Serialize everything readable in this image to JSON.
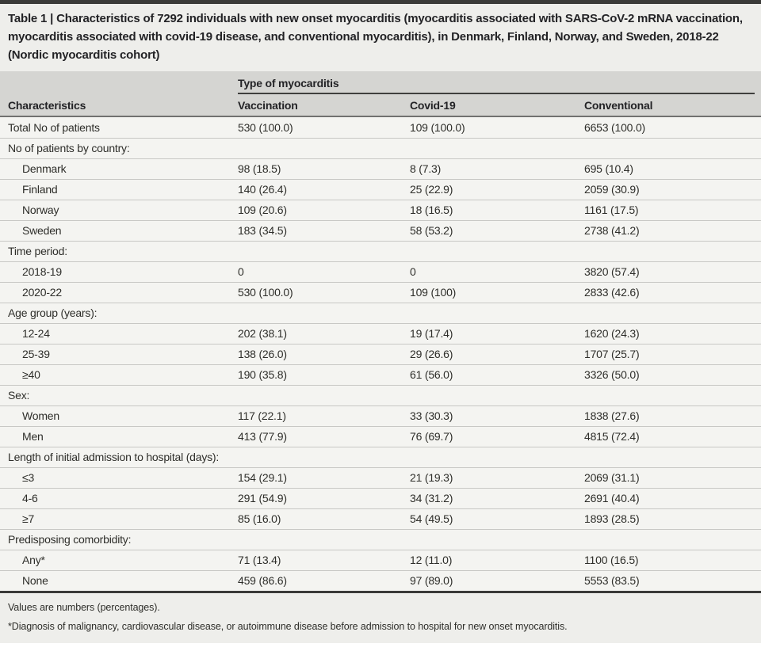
{
  "page": {
    "title": "Table 1 | Characteristics of 7292 individuals with new onset myocarditis (myocarditis associated with SARS-CoV-2 mRNA vaccination, myocarditis associated with covid-19 disease, and conventional myocarditis), in Denmark, Finland, Norway, and Sweden, 2018-22 (Nordic myocarditis cohort)"
  },
  "table": {
    "group_header": "Type of myocarditis",
    "columns": [
      "Characteristics",
      "Vaccination",
      "Covid-19",
      "Conventional"
    ],
    "rows": [
      {
        "type": "data",
        "indent": false,
        "label": "Total No of patients",
        "values": [
          "530 (100.0)",
          "109 (100.0)",
          "6653 (100.0)"
        ]
      },
      {
        "type": "section",
        "label": "No of patients by country:"
      },
      {
        "type": "data",
        "indent": true,
        "label": "Denmark",
        "values": [
          "98 (18.5)",
          "8 (7.3)",
          "695 (10.4)"
        ]
      },
      {
        "type": "data",
        "indent": true,
        "label": "Finland",
        "values": [
          "140 (26.4)",
          "25 (22.9)",
          "2059 (30.9)"
        ]
      },
      {
        "type": "data",
        "indent": true,
        "label": "Norway",
        "values": [
          "109 (20.6)",
          "18 (16.5)",
          "1161 (17.5)"
        ]
      },
      {
        "type": "data",
        "indent": true,
        "label": "Sweden",
        "values": [
          "183 (34.5)",
          "58 (53.2)",
          "2738 (41.2)"
        ]
      },
      {
        "type": "section",
        "label": "Time period:"
      },
      {
        "type": "data",
        "indent": true,
        "label": "2018-19",
        "values": [
          "0",
          "0",
          "3820 (57.4)"
        ]
      },
      {
        "type": "data",
        "indent": true,
        "label": "2020-22",
        "values": [
          "530 (100.0)",
          "109 (100)",
          "2833 (42.6)"
        ]
      },
      {
        "type": "section",
        "label": "Age group (years):"
      },
      {
        "type": "data",
        "indent": true,
        "label": "12-24",
        "values": [
          "202 (38.1)",
          "19 (17.4)",
          "1620 (24.3)"
        ]
      },
      {
        "type": "data",
        "indent": true,
        "label": "25-39",
        "values": [
          "138 (26.0)",
          "29 (26.6)",
          "1707 (25.7)"
        ]
      },
      {
        "type": "data",
        "indent": true,
        "label": "≥40",
        "values": [
          "190 (35.8)",
          "61 (56.0)",
          "3326 (50.0)"
        ]
      },
      {
        "type": "section",
        "label": "Sex:"
      },
      {
        "type": "data",
        "indent": true,
        "label": "Women",
        "values": [
          "117 (22.1)",
          "33 (30.3)",
          "1838 (27.6)"
        ]
      },
      {
        "type": "data",
        "indent": true,
        "label": "Men",
        "values": [
          "413 (77.9)",
          "76 (69.7)",
          "4815 (72.4)"
        ]
      },
      {
        "type": "section",
        "label": "Length of initial admission to hospital (days):"
      },
      {
        "type": "data",
        "indent": true,
        "label": "≤3",
        "values": [
          "154 (29.1)",
          "21 (19.3)",
          "2069 (31.1)"
        ]
      },
      {
        "type": "data",
        "indent": true,
        "label": "4-6",
        "values": [
          "291 (54.9)",
          "34 (31.2)",
          "2691 (40.4)"
        ]
      },
      {
        "type": "data",
        "indent": true,
        "label": "≥7",
        "values": [
          "85 (16.0)",
          "54 (49.5)",
          "1893 (28.5)"
        ]
      },
      {
        "type": "section",
        "label": "Predisposing comorbidity:"
      },
      {
        "type": "data",
        "indent": true,
        "label": "Any*",
        "values": [
          "71 (13.4)",
          "12 (11.0)",
          "1100 (16.5)"
        ]
      },
      {
        "type": "data",
        "indent": true,
        "label": "None",
        "values": [
          "459 (86.6)",
          "97 (89.0)",
          "5553 (83.5)"
        ]
      }
    ]
  },
  "footnotes": {
    "line1": "Values are numbers (percentages).",
    "line2": "*Diagnosis of malignancy, cardiovascular disease, or autoimmune disease before admission to hospital for new onset myocarditis."
  },
  "colors": {
    "top_rule": "#3a3a38",
    "title_bg": "#eeeeeb",
    "header_bg": "#d5d5d2",
    "group_header_rule": "#3f3f3d",
    "header_rule": "#717170",
    "row_bg": "#f4f4f1",
    "row_separator": "#c8c8c5",
    "footnote_rule": "#3a3a38",
    "footnote_bg": "#eeeeeb",
    "text": "#2e2e2a"
  }
}
